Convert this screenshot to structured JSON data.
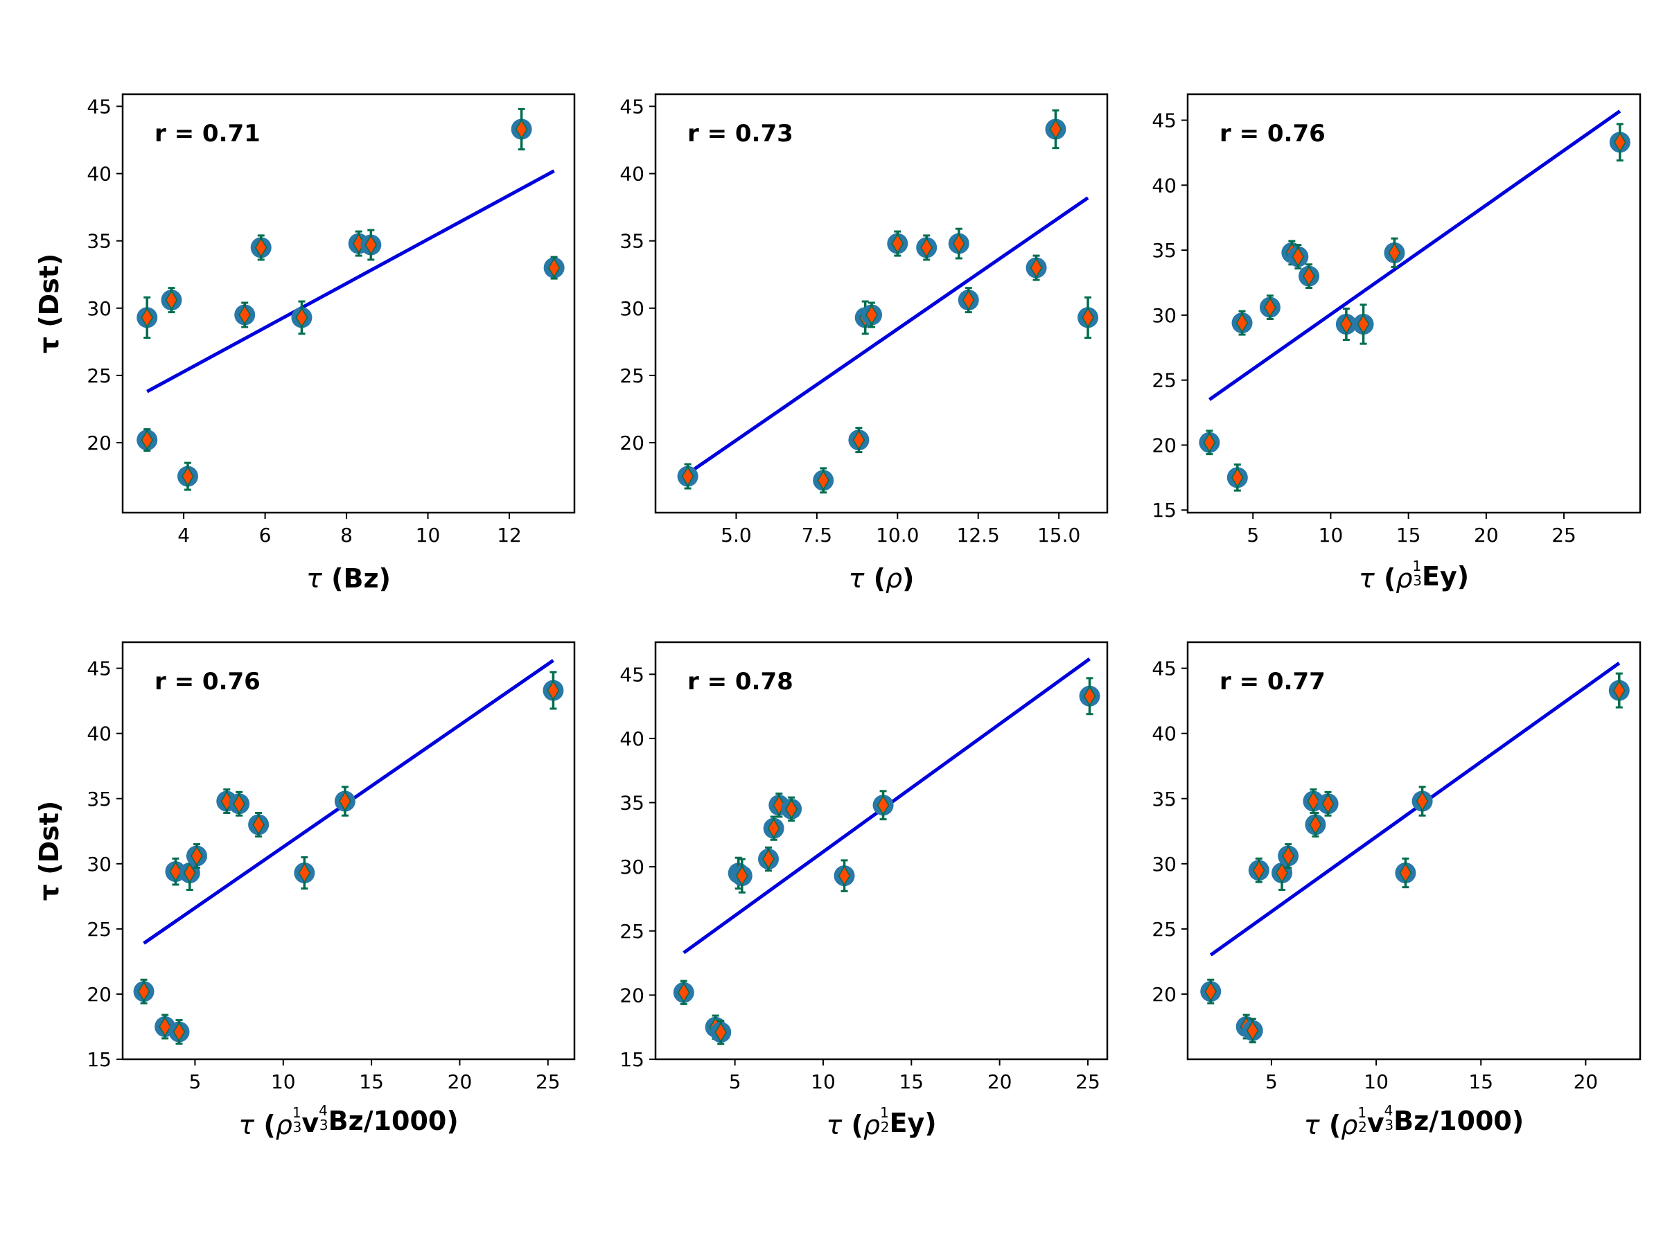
{
  "chart_data": [
    {
      "type": "scatter",
      "correlation_label": "r = 0.71",
      "xlabel_parts": [
        {
          "t": "τ",
          "it": true
        },
        {
          "t": " (Bz)",
          "b": true
        }
      ],
      "ylabel": "τ (Dst)",
      "xlim": [
        2.5,
        13.6
      ],
      "ylim": [
        14.8,
        45.9
      ],
      "xticks": [
        {
          "v": 4,
          "label": "4"
        },
        {
          "v": 6,
          "label": "6"
        },
        {
          "v": 8,
          "label": "8"
        },
        {
          "v": 10,
          "label": "10"
        },
        {
          "v": 12,
          "label": "12"
        }
      ],
      "yticks": [
        {
          "v": 20,
          "label": "20"
        },
        {
          "v": 25,
          "label": "25"
        },
        {
          "v": 30,
          "label": "30"
        },
        {
          "v": 35,
          "label": "35"
        },
        {
          "v": 40,
          "label": "40"
        },
        {
          "v": 45,
          "label": "45"
        }
      ],
      "points": [
        {
          "x": 3.1,
          "y": 29.3,
          "err": 1.5
        },
        {
          "x": 3.1,
          "y": 20.2,
          "err": 0.8
        },
        {
          "x": 3.7,
          "y": 30.6,
          "err": 0.9
        },
        {
          "x": 4.1,
          "y": 17.5,
          "err": 1.0
        },
        {
          "x": 5.5,
          "y": 29.5,
          "err": 0.9
        },
        {
          "x": 5.9,
          "y": 34.5,
          "err": 0.9
        },
        {
          "x": 6.9,
          "y": 29.3,
          "err": 1.2
        },
        {
          "x": 8.3,
          "y": 34.8,
          "err": 0.9
        },
        {
          "x": 8.6,
          "y": 34.7,
          "err": 1.1
        },
        {
          "x": 12.3,
          "y": 43.3,
          "err": 1.5
        },
        {
          "x": 13.1,
          "y": 33.0,
          "err": 0.8
        }
      ],
      "fit_line": {
        "x": [
          3.1,
          13.1
        ],
        "y": [
          23.8,
          40.2
        ]
      }
    },
    {
      "type": "scatter",
      "correlation_label": "r = 0.73",
      "xlabel_parts": [
        {
          "t": "τ",
          "it": true
        },
        {
          "t": " (",
          "b": true
        },
        {
          "t": "ρ",
          "it": true
        },
        {
          "t": ")",
          "b": true
        }
      ],
      "ylabel": "",
      "xlim": [
        2.5,
        16.5
      ],
      "ylim": [
        14.8,
        45.9
      ],
      "xticks": [
        {
          "v": 5.0,
          "label": "5.0"
        },
        {
          "v": 7.5,
          "label": "7.5"
        },
        {
          "v": 10.0,
          "label": "10.0"
        },
        {
          "v": 12.5,
          "label": "12.5"
        },
        {
          "v": 15.0,
          "label": "15.0"
        }
      ],
      "yticks": [
        {
          "v": 20,
          "label": "20"
        },
        {
          "v": 25,
          "label": "25"
        },
        {
          "v": 30,
          "label": "30"
        },
        {
          "v": 35,
          "label": "35"
        },
        {
          "v": 40,
          "label": "40"
        },
        {
          "v": 45,
          "label": "45"
        }
      ],
      "points": [
        {
          "x": 3.5,
          "y": 17.5,
          "err": 0.9
        },
        {
          "x": 7.7,
          "y": 17.2,
          "err": 0.9
        },
        {
          "x": 8.8,
          "y": 20.2,
          "err": 0.9
        },
        {
          "x": 9.0,
          "y": 29.3,
          "err": 1.2
        },
        {
          "x": 9.2,
          "y": 29.5,
          "err": 0.9
        },
        {
          "x": 10.0,
          "y": 34.8,
          "err": 0.9
        },
        {
          "x": 10.9,
          "y": 34.5,
          "err": 0.9
        },
        {
          "x": 11.9,
          "y": 34.8,
          "err": 1.1
        },
        {
          "x": 12.2,
          "y": 30.6,
          "err": 0.9
        },
        {
          "x": 14.3,
          "y": 33.0,
          "err": 0.9
        },
        {
          "x": 14.9,
          "y": 43.3,
          "err": 1.4
        },
        {
          "x": 15.9,
          "y": 29.3,
          "err": 1.5
        }
      ],
      "fit_line": {
        "x": [
          3.5,
          15.9
        ],
        "y": [
          17.7,
          38.2
        ]
      }
    },
    {
      "type": "scatter",
      "correlation_label": "r = 0.76",
      "xlabel_parts": [
        {
          "t": "τ",
          "it": true
        },
        {
          "t": " (",
          "b": true
        },
        {
          "t": "ρ",
          "it": true
        },
        {
          "frac": [
            "1",
            "3"
          ]
        },
        {
          "t": "Ey)",
          "b": true
        }
      ],
      "ylabel": "",
      "xlim": [
        0.8,
        29.9
      ],
      "ylim": [
        14.8,
        47.0
      ],
      "xticks": [
        {
          "v": 5,
          "label": "5"
        },
        {
          "v": 10,
          "label": "10"
        },
        {
          "v": 15,
          "label": "15"
        },
        {
          "v": 20,
          "label": "20"
        },
        {
          "v": 25,
          "label": "25"
        }
      ],
      "yticks": [
        {
          "v": 15,
          "label": "15"
        },
        {
          "v": 20,
          "label": "20"
        },
        {
          "v": 25,
          "label": "25"
        },
        {
          "v": 30,
          "label": "30"
        },
        {
          "v": 35,
          "label": "35"
        },
        {
          "v": 40,
          "label": "40"
        },
        {
          "v": 45,
          "label": "45"
        }
      ],
      "points": [
        {
          "x": 2.2,
          "y": 20.2,
          "err": 0.9
        },
        {
          "x": 4.0,
          "y": 17.5,
          "err": 1.0
        },
        {
          "x": 4.3,
          "y": 29.4,
          "err": 0.9
        },
        {
          "x": 6.1,
          "y": 30.6,
          "err": 0.9
        },
        {
          "x": 7.5,
          "y": 34.8,
          "err": 0.9
        },
        {
          "x": 7.9,
          "y": 34.5,
          "err": 0.9
        },
        {
          "x": 8.6,
          "y": 33.0,
          "err": 0.9
        },
        {
          "x": 11.0,
          "y": 29.3,
          "err": 1.2
        },
        {
          "x": 12.1,
          "y": 29.3,
          "err": 1.5
        },
        {
          "x": 14.1,
          "y": 34.8,
          "err": 1.1
        },
        {
          "x": 28.6,
          "y": 43.3,
          "err": 1.4
        }
      ],
      "fit_line": {
        "x": [
          2.2,
          28.6
        ],
        "y": [
          23.5,
          45.7
        ]
      }
    },
    {
      "type": "scatter",
      "correlation_label": "r = 0.76",
      "xlabel_parts": [
        {
          "t": "τ",
          "it": true
        },
        {
          "t": " (",
          "b": true
        },
        {
          "t": "ρ",
          "it": true
        },
        {
          "frac": [
            "1",
            "3"
          ]
        },
        {
          "t": "v",
          "b": true
        },
        {
          "frac": [
            "4",
            "3"
          ]
        },
        {
          "t": "Bz/1000)",
          "b": true
        }
      ],
      "ylabel": "τ (Dst)",
      "xlim": [
        0.9,
        26.5
      ],
      "ylim": [
        15.0,
        47.0
      ],
      "xticks": [
        {
          "v": 5,
          "label": "5"
        },
        {
          "v": 10,
          "label": "10"
        },
        {
          "v": 15,
          "label": "15"
        },
        {
          "v": 20,
          "label": "20"
        },
        {
          "v": 25,
          "label": "25"
        }
      ],
      "yticks": [
        {
          "v": 15,
          "label": "15"
        },
        {
          "v": 20,
          "label": "20"
        },
        {
          "v": 25,
          "label": "25"
        },
        {
          "v": 30,
          "label": "30"
        },
        {
          "v": 35,
          "label": "35"
        },
        {
          "v": 40,
          "label": "40"
        },
        {
          "v": 45,
          "label": "45"
        }
      ],
      "points": [
        {
          "x": 2.1,
          "y": 20.2,
          "err": 0.9
        },
        {
          "x": 3.3,
          "y": 17.5,
          "err": 0.9
        },
        {
          "x": 4.1,
          "y": 17.1,
          "err": 0.9
        },
        {
          "x": 3.9,
          "y": 29.4,
          "err": 1.0
        },
        {
          "x": 4.7,
          "y": 29.3,
          "err": 1.3
        },
        {
          "x": 5.1,
          "y": 30.6,
          "err": 0.9
        },
        {
          "x": 6.8,
          "y": 34.8,
          "err": 0.9
        },
        {
          "x": 7.5,
          "y": 34.6,
          "err": 0.9
        },
        {
          "x": 8.6,
          "y": 33.0,
          "err": 0.9
        },
        {
          "x": 11.2,
          "y": 29.3,
          "err": 1.2
        },
        {
          "x": 13.5,
          "y": 34.8,
          "err": 1.1
        },
        {
          "x": 25.3,
          "y": 43.3,
          "err": 1.4
        }
      ],
      "fit_line": {
        "x": [
          2.1,
          25.3
        ],
        "y": [
          23.9,
          45.6
        ]
      }
    },
    {
      "type": "scatter",
      "correlation_label": "r = 0.78",
      "xlabel_parts": [
        {
          "t": "τ",
          "it": true
        },
        {
          "t": " (",
          "b": true
        },
        {
          "t": "ρ",
          "it": true
        },
        {
          "frac": [
            "1",
            "2"
          ]
        },
        {
          "t": "Ey)",
          "b": true
        }
      ],
      "ylabel": "",
      "xlim": [
        0.5,
        26.1
      ],
      "ylim": [
        15.0,
        47.5
      ],
      "xticks": [
        {
          "v": 5,
          "label": "5"
        },
        {
          "v": 10,
          "label": "10"
        },
        {
          "v": 15,
          "label": "15"
        },
        {
          "v": 20,
          "label": "20"
        },
        {
          "v": 25,
          "label": "25"
        }
      ],
      "yticks": [
        {
          "v": 15,
          "label": "15"
        },
        {
          "v": 20,
          "label": "20"
        },
        {
          "v": 25,
          "label": "25"
        },
        {
          "v": 30,
          "label": "30"
        },
        {
          "v": 35,
          "label": "35"
        },
        {
          "v": 40,
          "label": "40"
        },
        {
          "v": 45,
          "label": "45"
        }
      ],
      "points": [
        {
          "x": 2.1,
          "y": 20.2,
          "err": 0.9
        },
        {
          "x": 3.9,
          "y": 17.5,
          "err": 0.9
        },
        {
          "x": 4.2,
          "y": 17.1,
          "err": 0.9
        },
        {
          "x": 5.2,
          "y": 29.5,
          "err": 1.2
        },
        {
          "x": 5.4,
          "y": 29.3,
          "err": 1.3
        },
        {
          "x": 6.9,
          "y": 30.6,
          "err": 0.9
        },
        {
          "x": 7.2,
          "y": 33.0,
          "err": 0.9
        },
        {
          "x": 7.5,
          "y": 34.8,
          "err": 0.9
        },
        {
          "x": 8.2,
          "y": 34.5,
          "err": 0.9
        },
        {
          "x": 11.2,
          "y": 29.3,
          "err": 1.2
        },
        {
          "x": 13.4,
          "y": 34.8,
          "err": 1.1
        },
        {
          "x": 25.1,
          "y": 43.3,
          "err": 1.4
        }
      ],
      "fit_line": {
        "x": [
          2.1,
          25.1
        ],
        "y": [
          23.3,
          46.2
        ]
      }
    },
    {
      "type": "scatter",
      "correlation_label": "r = 0.77",
      "xlabel_parts": [
        {
          "t": "τ",
          "it": true
        },
        {
          "t": " (",
          "b": true
        },
        {
          "t": "ρ",
          "it": true
        },
        {
          "frac": [
            "1",
            "2"
          ]
        },
        {
          "t": "v",
          "b": true
        },
        {
          "frac": [
            "4",
            "3"
          ]
        },
        {
          "t": "Bz/1000)",
          "b": true
        }
      ],
      "ylabel": "",
      "xlim": [
        1.0,
        22.6
      ],
      "ylim": [
        15.0,
        47.0
      ],
      "xticks": [
        {
          "v": 5,
          "label": "5"
        },
        {
          "v": 10,
          "label": "10"
        },
        {
          "v": 15,
          "label": "15"
        },
        {
          "v": 20,
          "label": "20"
        }
      ],
      "yticks": [
        {
          "v": 20,
          "label": "20"
        },
        {
          "v": 25,
          "label": "25"
        },
        {
          "v": 30,
          "label": "30"
        },
        {
          "v": 35,
          "label": "35"
        },
        {
          "v": 40,
          "label": "40"
        },
        {
          "v": 45,
          "label": "45"
        }
      ],
      "points": [
        {
          "x": 2.1,
          "y": 20.2,
          "err": 0.9
        },
        {
          "x": 3.8,
          "y": 17.5,
          "err": 0.9
        },
        {
          "x": 4.1,
          "y": 17.2,
          "err": 0.9
        },
        {
          "x": 4.4,
          "y": 29.5,
          "err": 0.9
        },
        {
          "x": 5.5,
          "y": 29.3,
          "err": 1.3
        },
        {
          "x": 5.8,
          "y": 30.6,
          "err": 0.9
        },
        {
          "x": 7.0,
          "y": 34.8,
          "err": 0.9
        },
        {
          "x": 7.1,
          "y": 33.0,
          "err": 0.9
        },
        {
          "x": 7.7,
          "y": 34.6,
          "err": 0.9
        },
        {
          "x": 11.4,
          "y": 29.3,
          "err": 1.1
        },
        {
          "x": 12.2,
          "y": 34.8,
          "err": 1.1
        },
        {
          "x": 21.6,
          "y": 43.3,
          "err": 1.3
        }
      ],
      "fit_line": {
        "x": [
          2.1,
          21.6
        ],
        "y": [
          23.0,
          45.4
        ]
      }
    }
  ],
  "colors": {
    "marker_circle": "#2878a8",
    "marker_diamond": "#ff4a00",
    "error_bar": "#006d4f",
    "fit_line": "#0000dd",
    "axis": "#000000"
  }
}
